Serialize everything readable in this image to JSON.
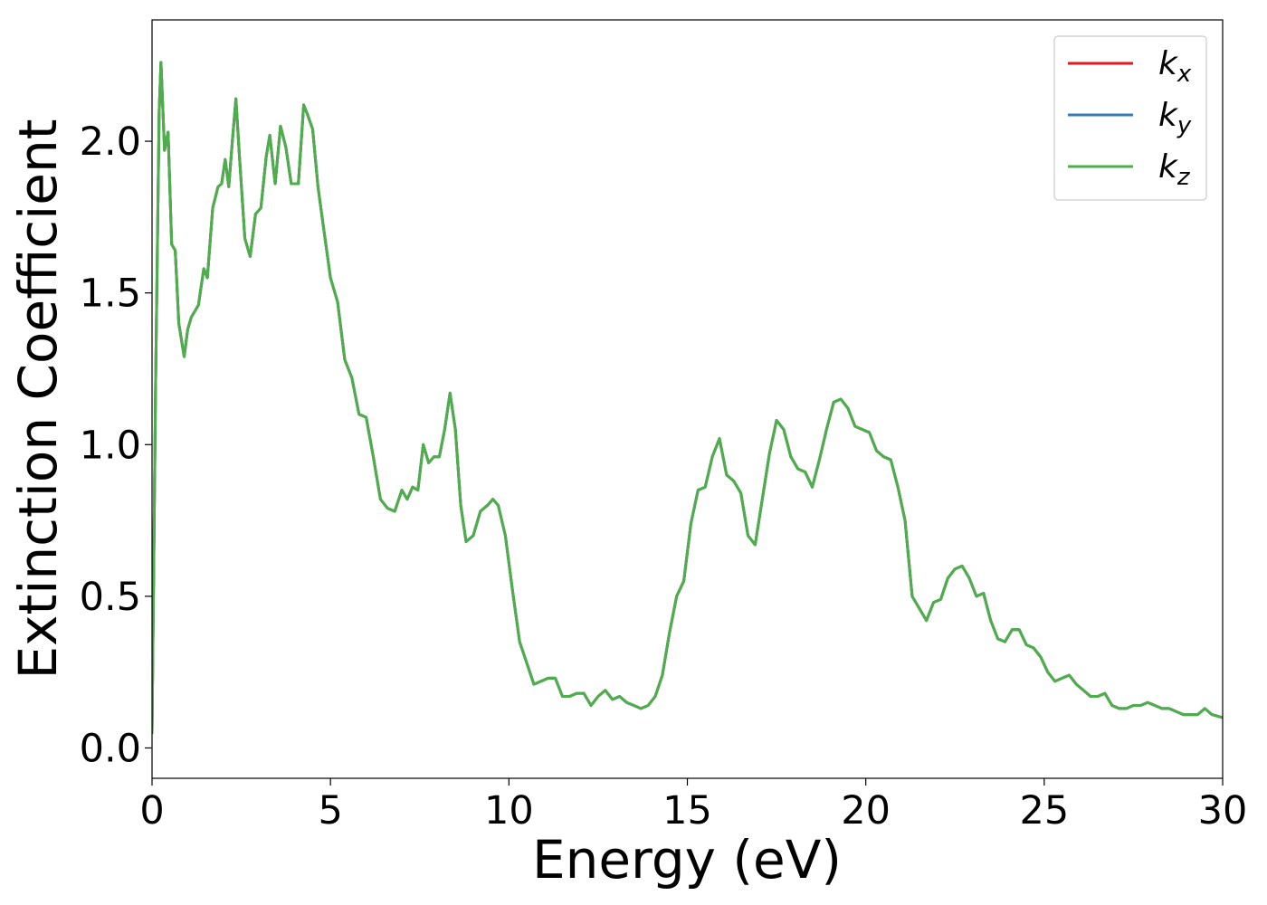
{
  "chart_data": {
    "type": "line",
    "title": "",
    "xlabel": "Energy (eV)",
    "ylabel": "Extinction Coefficient",
    "xlim": [
      0,
      30
    ],
    "ylim": [
      -0.1,
      2.4
    ],
    "xticks": [
      0,
      5,
      10,
      15,
      20,
      25,
      30
    ],
    "xtick_labels": [
      "0",
      "5",
      "10",
      "15",
      "20",
      "25",
      "30"
    ],
    "yticks": [
      0.0,
      0.5,
      1.0,
      1.5,
      2.0
    ],
    "ytick_labels": [
      "0.0",
      "0.5",
      "1.0",
      "1.5",
      "2.0"
    ],
    "grid": false,
    "legend_position": "top-right",
    "x": [
      0,
      0.1,
      0.2,
      0.25,
      0.35,
      0.45,
      0.55,
      0.65,
      0.75,
      0.9,
      1.0,
      1.1,
      1.3,
      1.45,
      1.55,
      1.7,
      1.85,
      1.95,
      2.05,
      2.15,
      2.25,
      2.35,
      2.45,
      2.6,
      2.75,
      2.9,
      3.05,
      3.2,
      3.3,
      3.45,
      3.6,
      3.75,
      3.9,
      4.1,
      4.25,
      4.35,
      4.5,
      4.65,
      4.8,
      5.0,
      5.2,
      5.4,
      5.6,
      5.8,
      6.0,
      6.2,
      6.4,
      6.6,
      6.8,
      7.0,
      7.15,
      7.3,
      7.45,
      7.6,
      7.75,
      7.9,
      8.05,
      8.2,
      8.35,
      8.5,
      8.65,
      8.8,
      9.0,
      9.2,
      9.4,
      9.55,
      9.7,
      9.9,
      10.1,
      10.3,
      10.5,
      10.7,
      10.9,
      11.1,
      11.3,
      11.5,
      11.7,
      11.9,
      12.1,
      12.3,
      12.5,
      12.7,
      12.9,
      13.1,
      13.3,
      13.5,
      13.7,
      13.9,
      14.1,
      14.3,
      14.5,
      14.7,
      14.9,
      15.1,
      15.3,
      15.5,
      15.7,
      15.9,
      16.1,
      16.3,
      16.5,
      16.7,
      16.9,
      17.1,
      17.3,
      17.5,
      17.7,
      17.9,
      18.1,
      18.3,
      18.5,
      18.7,
      18.9,
      19.1,
      19.3,
      19.5,
      19.7,
      19.9,
      20.1,
      20.3,
      20.5,
      20.7,
      20.9,
      21.1,
      21.3,
      21.5,
      21.7,
      21.9,
      22.1,
      22.3,
      22.5,
      22.7,
      22.9,
      23.1,
      23.3,
      23.5,
      23.7,
      23.9,
      24.1,
      24.3,
      24.5,
      24.7,
      24.9,
      25.1,
      25.3,
      25.5,
      25.7,
      25.9,
      26.1,
      26.3,
      26.5,
      26.7,
      26.9,
      27.1,
      27.3,
      27.5,
      27.7,
      27.9,
      28.1,
      28.3,
      28.5,
      28.7,
      28.9,
      29.1,
      29.3,
      29.5,
      29.7,
      30.0
    ],
    "series": [
      {
        "name": "k_x",
        "color": "#e41a1c",
        "y": [
          0.05,
          1.2,
          2.1,
          2.26,
          1.97,
          2.03,
          1.66,
          1.64,
          1.4,
          1.29,
          1.38,
          1.42,
          1.46,
          1.58,
          1.55,
          1.78,
          1.85,
          1.86,
          1.94,
          1.85,
          2.0,
          2.14,
          1.95,
          1.68,
          1.62,
          1.76,
          1.78,
          1.95,
          2.02,
          1.86,
          2.05,
          1.98,
          1.86,
          1.86,
          2.12,
          2.09,
          2.04,
          1.85,
          1.72,
          1.55,
          1.47,
          1.28,
          1.22,
          1.1,
          1.09,
          0.96,
          0.82,
          0.79,
          0.78,
          0.85,
          0.82,
          0.86,
          0.85,
          1.0,
          0.94,
          0.96,
          0.96,
          1.05,
          1.17,
          1.05,
          0.8,
          0.68,
          0.7,
          0.78,
          0.8,
          0.82,
          0.8,
          0.7,
          0.52,
          0.35,
          0.28,
          0.21,
          0.22,
          0.23,
          0.23,
          0.17,
          0.17,
          0.18,
          0.18,
          0.14,
          0.17,
          0.19,
          0.16,
          0.17,
          0.15,
          0.14,
          0.13,
          0.14,
          0.17,
          0.24,
          0.38,
          0.5,
          0.55,
          0.74,
          0.85,
          0.86,
          0.96,
          1.02,
          0.9,
          0.88,
          0.84,
          0.7,
          0.67,
          0.82,
          0.97,
          1.08,
          1.05,
          0.96,
          0.92,
          0.91,
          0.86,
          0.95,
          1.05,
          1.14,
          1.15,
          1.12,
          1.06,
          1.05,
          1.04,
          0.98,
          0.96,
          0.95,
          0.86,
          0.75,
          0.5,
          0.46,
          0.42,
          0.48,
          0.49,
          0.56,
          0.59,
          0.6,
          0.56,
          0.5,
          0.51,
          0.42,
          0.36,
          0.35,
          0.39,
          0.39,
          0.34,
          0.33,
          0.3,
          0.25,
          0.22,
          0.23,
          0.24,
          0.21,
          0.19,
          0.17,
          0.17,
          0.18,
          0.14,
          0.13,
          0.13,
          0.14,
          0.14,
          0.15,
          0.14,
          0.13,
          0.13,
          0.12,
          0.11,
          0.11,
          0.11,
          0.13,
          0.11,
          0.1
        ]
      },
      {
        "name": "k_y",
        "color": "#377eb8",
        "y": [
          0.05,
          1.2,
          2.1,
          2.26,
          1.97,
          2.03,
          1.66,
          1.64,
          1.4,
          1.29,
          1.38,
          1.42,
          1.46,
          1.58,
          1.55,
          1.78,
          1.85,
          1.86,
          1.94,
          1.85,
          2.0,
          2.14,
          1.95,
          1.68,
          1.62,
          1.76,
          1.78,
          1.95,
          2.02,
          1.86,
          2.05,
          1.98,
          1.86,
          1.86,
          2.12,
          2.09,
          2.04,
          1.85,
          1.72,
          1.55,
          1.47,
          1.28,
          1.22,
          1.1,
          1.09,
          0.96,
          0.82,
          0.79,
          0.78,
          0.85,
          0.82,
          0.86,
          0.85,
          1.0,
          0.94,
          0.96,
          0.96,
          1.05,
          1.17,
          1.05,
          0.8,
          0.68,
          0.7,
          0.78,
          0.8,
          0.82,
          0.8,
          0.7,
          0.52,
          0.35,
          0.28,
          0.21,
          0.22,
          0.23,
          0.23,
          0.17,
          0.17,
          0.18,
          0.18,
          0.14,
          0.17,
          0.19,
          0.16,
          0.17,
          0.15,
          0.14,
          0.13,
          0.14,
          0.17,
          0.24,
          0.38,
          0.5,
          0.55,
          0.74,
          0.85,
          0.86,
          0.96,
          1.02,
          0.9,
          0.88,
          0.84,
          0.7,
          0.67,
          0.82,
          0.97,
          1.08,
          1.05,
          0.96,
          0.92,
          0.91,
          0.86,
          0.95,
          1.05,
          1.14,
          1.15,
          1.12,
          1.06,
          1.05,
          1.04,
          0.98,
          0.96,
          0.95,
          0.86,
          0.75,
          0.5,
          0.46,
          0.42,
          0.48,
          0.49,
          0.56,
          0.59,
          0.6,
          0.56,
          0.5,
          0.51,
          0.42,
          0.36,
          0.35,
          0.39,
          0.39,
          0.34,
          0.33,
          0.3,
          0.25,
          0.22,
          0.23,
          0.24,
          0.21,
          0.19,
          0.17,
          0.17,
          0.18,
          0.14,
          0.13,
          0.13,
          0.14,
          0.14,
          0.15,
          0.14,
          0.13,
          0.13,
          0.12,
          0.11,
          0.11,
          0.11,
          0.13,
          0.11,
          0.1
        ]
      },
      {
        "name": "k_z",
        "color": "#4daf4a",
        "y": [
          0.05,
          1.2,
          2.1,
          2.26,
          1.97,
          2.03,
          1.66,
          1.64,
          1.4,
          1.29,
          1.38,
          1.42,
          1.46,
          1.58,
          1.55,
          1.78,
          1.85,
          1.86,
          1.94,
          1.85,
          2.0,
          2.14,
          1.95,
          1.68,
          1.62,
          1.76,
          1.78,
          1.95,
          2.02,
          1.86,
          2.05,
          1.98,
          1.86,
          1.86,
          2.12,
          2.09,
          2.04,
          1.85,
          1.72,
          1.55,
          1.47,
          1.28,
          1.22,
          1.1,
          1.09,
          0.96,
          0.82,
          0.79,
          0.78,
          0.85,
          0.82,
          0.86,
          0.85,
          1.0,
          0.94,
          0.96,
          0.96,
          1.05,
          1.17,
          1.05,
          0.8,
          0.68,
          0.7,
          0.78,
          0.8,
          0.82,
          0.8,
          0.7,
          0.52,
          0.35,
          0.28,
          0.21,
          0.22,
          0.23,
          0.23,
          0.17,
          0.17,
          0.18,
          0.18,
          0.14,
          0.17,
          0.19,
          0.16,
          0.17,
          0.15,
          0.14,
          0.13,
          0.14,
          0.17,
          0.24,
          0.38,
          0.5,
          0.55,
          0.74,
          0.85,
          0.86,
          0.96,
          1.02,
          0.9,
          0.88,
          0.84,
          0.7,
          0.67,
          0.82,
          0.97,
          1.08,
          1.05,
          0.96,
          0.92,
          0.91,
          0.86,
          0.95,
          1.05,
          1.14,
          1.15,
          1.12,
          1.06,
          1.05,
          1.04,
          0.98,
          0.96,
          0.95,
          0.86,
          0.75,
          0.5,
          0.46,
          0.42,
          0.48,
          0.49,
          0.56,
          0.59,
          0.6,
          0.56,
          0.5,
          0.51,
          0.42,
          0.36,
          0.35,
          0.39,
          0.39,
          0.34,
          0.33,
          0.3,
          0.25,
          0.22,
          0.23,
          0.24,
          0.21,
          0.19,
          0.17,
          0.17,
          0.18,
          0.14,
          0.13,
          0.13,
          0.14,
          0.14,
          0.15,
          0.14,
          0.13,
          0.13,
          0.12,
          0.11,
          0.11,
          0.11,
          0.13,
          0.11,
          0.1
        ]
      }
    ],
    "legend": [
      {
        "base": "k",
        "sub": "x"
      },
      {
        "base": "k",
        "sub": "y"
      },
      {
        "base": "k",
        "sub": "z"
      }
    ]
  }
}
